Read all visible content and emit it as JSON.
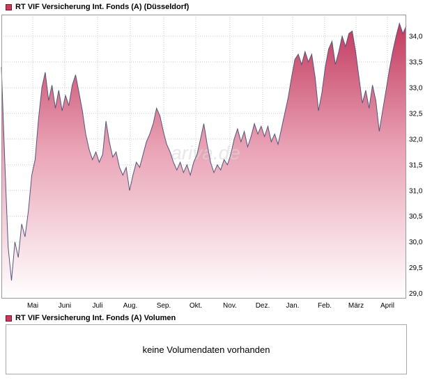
{
  "price_panel": {
    "title": "RT VIF Versicherung Int. Fonds (A) (Düsseldorf)",
    "legend_color": "#c93a5c"
  },
  "volume_panel": {
    "title": "RT VIF Versicherung Int. Fonds (A) Volumen",
    "message": "keine Volumendaten vorhanden",
    "legend_color": "#c93a5c"
  },
  "watermark": "ariva.de",
  "chart_data": {
    "type": "area",
    "title": "RT VIF Versicherung Int. Fonds (A) (Düsseldorf)",
    "xlabel": "",
    "ylabel": "",
    "grid": true,
    "legend_position": "none",
    "line_color": "#55557a",
    "fill_top": "#c23a5e",
    "fill_mid": "#e9a2b5",
    "fill_bottom": "#ffffff",
    "grid_color": "#c9c9c9",
    "border_color": "#999999",
    "watermark_color": "#d9d9d9",
    "ylim": [
      28.9,
      34.42
    ],
    "y_ticks": [
      29.0,
      29.5,
      30.0,
      30.5,
      31.0,
      31.5,
      32.0,
      32.5,
      33.0,
      33.5,
      34.0
    ],
    "y_tick_labels": [
      "29,0",
      "29,5",
      "30,0",
      "30,5",
      "31,0",
      "31,5",
      "32,0",
      "32,5",
      "33,0",
      "33,5",
      "34,0"
    ],
    "x_tick_labels": [
      "Mai",
      "Juni",
      "Juli",
      "Aug.",
      "Sep.",
      "Okt.",
      "Nov.",
      "Dez.",
      "Jan.",
      "Feb.",
      "März",
      "April"
    ],
    "x_tick_pos": [
      0.0775,
      0.1566,
      0.2375,
      0.3184,
      0.401,
      0.4802,
      0.5645,
      0.6454,
      0.7194,
      0.7986,
      0.8761,
      0.9535
    ],
    "series": [
      {
        "name": "RT VIF Versicherung Int. Fonds (A)",
        "values": [
          33.4,
          31.6,
          29.9,
          29.25,
          30.0,
          29.7,
          30.35,
          30.1,
          30.6,
          31.3,
          31.6,
          32.4,
          33.0,
          33.3,
          32.75,
          33.05,
          32.6,
          32.95,
          32.55,
          32.85,
          32.65,
          33.05,
          33.25,
          32.9,
          32.55,
          32.1,
          31.8,
          31.6,
          31.75,
          31.55,
          31.7,
          32.35,
          31.95,
          31.65,
          31.75,
          31.45,
          31.3,
          31.45,
          31.0,
          31.3,
          31.55,
          31.45,
          31.7,
          31.95,
          32.1,
          32.3,
          32.6,
          32.45,
          32.15,
          31.9,
          31.75,
          31.55,
          31.4,
          31.55,
          31.35,
          31.5,
          31.3,
          31.55,
          31.7,
          32.0,
          32.3,
          31.9,
          31.55,
          31.35,
          31.5,
          31.4,
          31.6,
          31.5,
          31.7,
          32.0,
          32.2,
          31.95,
          32.15,
          31.85,
          32.05,
          32.3,
          32.1,
          32.25,
          32.05,
          32.25,
          31.95,
          32.1,
          31.9,
          32.2,
          32.5,
          32.8,
          33.2,
          33.55,
          33.65,
          33.45,
          33.7,
          33.5,
          33.65,
          33.2,
          32.55,
          32.9,
          33.4,
          33.75,
          33.9,
          33.45,
          33.7,
          34.0,
          33.8,
          34.05,
          34.1,
          33.7,
          33.2,
          32.7,
          32.95,
          32.6,
          33.05,
          32.75,
          32.15,
          32.55,
          32.95,
          33.35,
          33.7,
          34.0,
          34.25,
          34.05,
          34.2
        ]
      }
    ]
  }
}
